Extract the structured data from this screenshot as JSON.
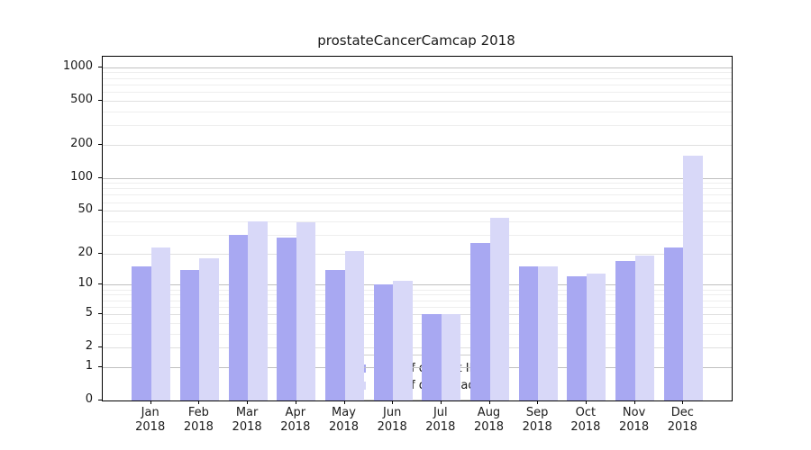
{
  "chart_data": {
    "type": "bar",
    "title": "prostateCancerCamcap 2018",
    "year": "2018",
    "categories": [
      "Jan",
      "Feb",
      "Mar",
      "Apr",
      "May",
      "Jun",
      "Jul",
      "Aug",
      "Sep",
      "Oct",
      "Nov",
      "Dec"
    ],
    "series": [
      {
        "name": "Nb of distinct IPs",
        "color": "#a8a8f2",
        "values": [
          15,
          14,
          30,
          28,
          14,
          10,
          5,
          25,
          15,
          12,
          17,
          23
        ]
      },
      {
        "name": "Nb of downloads",
        "color": "#d8d8f8",
        "values": [
          23,
          18,
          40,
          39,
          21,
          11,
          5,
          43,
          15,
          13,
          19,
          160
        ]
      }
    ],
    "y_scale": "log1p",
    "y_max": 1000,
    "ylim": [
      0,
      1000
    ],
    "y_ticks": [
      0,
      1,
      2,
      5,
      10,
      20,
      50,
      100,
      200,
      500,
      1000
    ],
    "grid": {
      "major_lines": [
        1,
        10,
        100,
        1000
      ],
      "mid_lines": [
        2,
        5,
        20,
        50,
        200,
        500
      ],
      "minor_lines": [
        3,
        4,
        6,
        7,
        8,
        9,
        30,
        40,
        60,
        70,
        80,
        90,
        300,
        400,
        600,
        700,
        800,
        900
      ],
      "colors": {
        "major": "#c0c0c0",
        "mid": "#e0e0e0",
        "minor": "#eeeeee"
      }
    },
    "legend": {
      "position": "bottom-center"
    },
    "xlabel": "",
    "ylabel": ""
  }
}
